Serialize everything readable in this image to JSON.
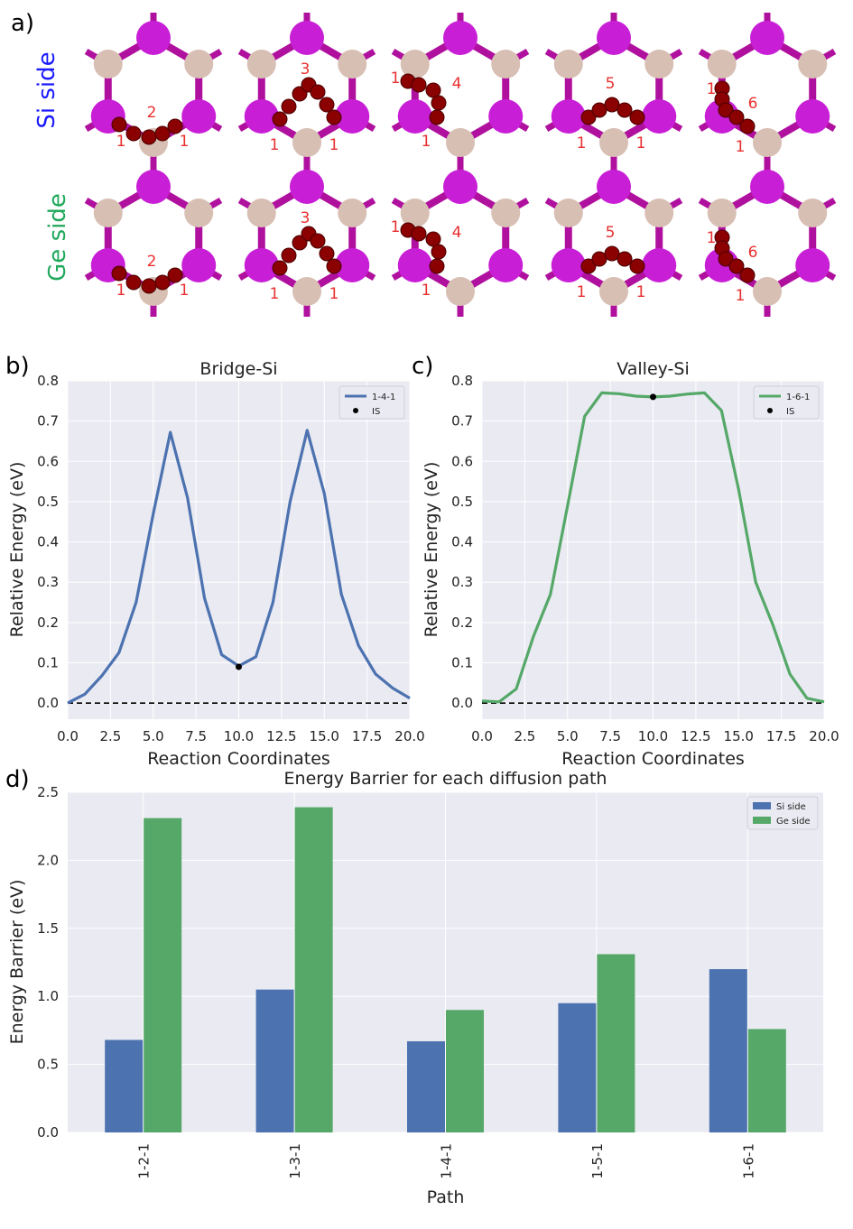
{
  "panel_a": {
    "label": "a)",
    "rows": [
      {
        "label": "Si side",
        "color": "#1a1aff",
        "structures": [
          {
            "site": "2",
            "ends": [
              "1",
              "1"
            ]
          },
          {
            "site": "3",
            "ends": [
              "1",
              "1"
            ]
          },
          {
            "site": "4",
            "ends": [
              "1",
              "1"
            ]
          },
          {
            "site": "5",
            "ends": [
              "1",
              "1"
            ]
          },
          {
            "site": "6",
            "ends": [
              "1",
              "1"
            ]
          }
        ]
      },
      {
        "label": "Ge side",
        "color": "#1fa85a",
        "structures": [
          {
            "site": "2",
            "ends": [
              "1",
              "1"
            ]
          },
          {
            "site": "3",
            "ends": [
              "1",
              "1"
            ]
          },
          {
            "site": "4",
            "ends": [
              "1",
              "1"
            ]
          },
          {
            "site": "5",
            "ends": [
              "1",
              "1"
            ]
          },
          {
            "site": "6",
            "ends": [
              "1",
              "1"
            ]
          }
        ]
      }
    ],
    "colors": {
      "purple_atom": "#c81ed6",
      "tan_atom": "#d8bfb4",
      "oxygen": "#8b0000",
      "bond": "#b0109e",
      "label_red": "#e83030"
    }
  },
  "panel_b": {
    "label": "b)"
  },
  "panel_c": {
    "label": "c)"
  },
  "panel_d": {
    "label": "d)"
  },
  "chart_data": [
    {
      "type": "line",
      "title": "Bridge-Si",
      "xlabel": "Reaction Coordinates",
      "ylabel": "Relative Energy (eV)",
      "xlim": [
        0,
        20
      ],
      "ylim": [
        -0.04,
        0.8
      ],
      "xticks": [
        0,
        2.5,
        5,
        7.5,
        10,
        12.5,
        15,
        17.5,
        20
      ],
      "xtick_labels": [
        "0.0",
        "2.5",
        "5.0",
        "7.5",
        "10.0",
        "12.5",
        "15.0",
        "17.5",
        "20.0"
      ],
      "yticks": [
        0,
        0.1,
        0.2,
        0.3,
        0.4,
        0.5,
        0.6,
        0.7,
        0.8
      ],
      "ytick_labels": [
        "0.0",
        "0.1",
        "0.2",
        "0.3",
        "0.4",
        "0.5",
        "0.6",
        "0.7",
        "0.8"
      ],
      "legend_position": "top-right",
      "series": [
        {
          "name": "1-4-1",
          "color": "#4c72b0",
          "x": [
            0,
            1,
            2,
            3,
            4,
            5,
            6,
            7,
            8,
            9,
            10,
            11,
            12,
            13,
            14,
            15,
            16,
            17,
            18,
            19,
            20
          ],
          "y": [
            0.0,
            0.022,
            0.068,
            0.125,
            0.25,
            0.47,
            0.672,
            0.51,
            0.26,
            0.12,
            0.092,
            0.115,
            0.25,
            0.5,
            0.677,
            0.52,
            0.27,
            0.143,
            0.072,
            0.037,
            0.012
          ]
        }
      ],
      "markers": [
        {
          "name": "IS",
          "color": "#000000",
          "x": 10,
          "y": 0.09
        }
      ],
      "hline": {
        "y": 0,
        "style": "dashed",
        "color": "#000000"
      }
    },
    {
      "type": "line",
      "title": "Valley-Si",
      "xlabel": "Reaction Coordinates",
      "ylabel": "Relative Energy (eV)",
      "xlim": [
        0,
        20
      ],
      "ylim": [
        -0.04,
        0.8
      ],
      "xticks": [
        0,
        2.5,
        5,
        7.5,
        10,
        12.5,
        15,
        17.5,
        20
      ],
      "xtick_labels": [
        "0.0",
        "2.5",
        "5.0",
        "7.5",
        "10.0",
        "12.5",
        "15.0",
        "17.5",
        "20.0"
      ],
      "yticks": [
        0,
        0.1,
        0.2,
        0.3,
        0.4,
        0.5,
        0.6,
        0.7,
        0.8
      ],
      "ytick_labels": [
        "0.0",
        "0.1",
        "0.2",
        "0.3",
        "0.4",
        "0.5",
        "0.6",
        "0.7",
        "0.8"
      ],
      "legend_position": "top-right",
      "series": [
        {
          "name": "1-6-1",
          "color": "#55a868",
          "x": [
            0,
            1,
            2,
            3,
            4,
            5,
            6,
            7,
            8,
            9,
            10,
            11,
            12,
            13,
            14,
            15,
            16,
            17,
            18,
            19,
            20
          ],
          "y": [
            0.005,
            0.003,
            0.035,
            0.165,
            0.27,
            0.49,
            0.712,
            0.77,
            0.768,
            0.762,
            0.76,
            0.762,
            0.767,
            0.77,
            0.726,
            0.53,
            0.3,
            0.195,
            0.072,
            0.012,
            0.003
          ]
        }
      ],
      "markers": [
        {
          "name": "IS",
          "color": "#000000",
          "x": 10,
          "y": 0.76
        }
      ],
      "hline": {
        "y": 0,
        "style": "dashed",
        "color": "#000000"
      }
    },
    {
      "type": "bar",
      "title": "Energy Barrier for each diffusion path",
      "xlabel": "Path",
      "ylabel": "Energy Barrier (eV)",
      "ylim": [
        0,
        2.5
      ],
      "yticks": [
        0,
        0.5,
        1.0,
        1.5,
        2.0,
        2.5
      ],
      "ytick_labels": [
        "0.0",
        "0.5",
        "1.0",
        "1.5",
        "2.0",
        "2.5"
      ],
      "categories": [
        "1-2-1",
        "1-3-1",
        "1-4-1",
        "1-5-1",
        "1-6-1"
      ],
      "legend_position": "top-right",
      "series": [
        {
          "name": "Si side",
          "color": "#4c72b0",
          "values": [
            0.68,
            1.05,
            0.67,
            0.95,
            1.2
          ]
        },
        {
          "name": "Ge side",
          "color": "#55a868",
          "values": [
            2.31,
            2.39,
            0.9,
            1.31,
            0.76
          ]
        }
      ]
    }
  ]
}
